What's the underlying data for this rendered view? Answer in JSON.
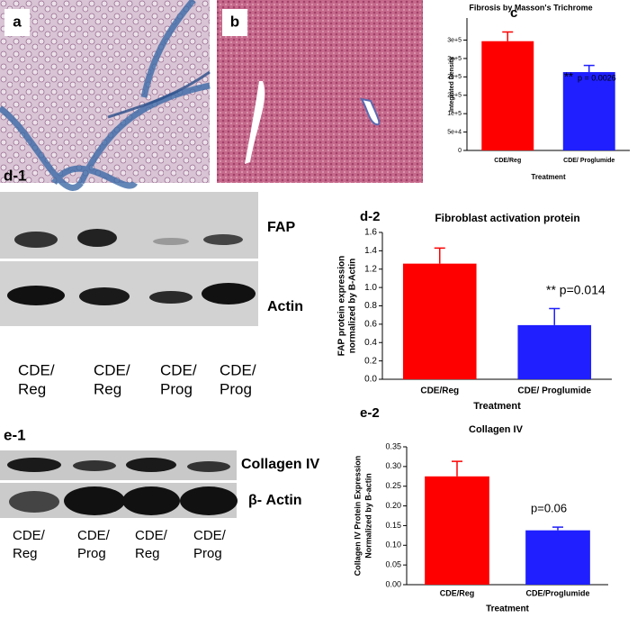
{
  "panel_a": {
    "label": "a"
  },
  "panel_b": {
    "label": "b"
  },
  "blot_d1": {
    "label": "d-1",
    "bands": [
      "FAP",
      "Actin"
    ],
    "lanes": [
      [
        "CDE/",
        "Reg"
      ],
      [
        "CDE/",
        "Reg"
      ],
      [
        "CDE/",
        "Prog"
      ],
      [
        "CDE/",
        "Prog"
      ]
    ]
  },
  "blot_e1": {
    "label": "e-1",
    "bands": [
      "Collagen IV",
      "β- Actin"
    ],
    "lanes": [
      [
        "CDE/",
        "Reg"
      ],
      [
        "CDE/",
        "Prog"
      ],
      [
        "CDE/",
        "Reg"
      ],
      [
        "CDE/",
        "Prog"
      ]
    ]
  },
  "chart_data": [
    {
      "type": "bar",
      "panel": "c",
      "title": "Fibrosis by Masson's Trichrome",
      "ylabel": [
        "Integrated Density"
      ],
      "xlabel": "Treatment",
      "categories": [
        "CDE/Reg",
        "CDE/ Proglumide"
      ],
      "values": [
        297000,
        213000
      ],
      "errors": [
        25000,
        18000
      ],
      "colors": [
        "#ff0000",
        "#1f1fff"
      ],
      "ylim": [
        0,
        360000
      ],
      "yticks": [
        0,
        {
          "value": 50000,
          "label": "5e+4"
        },
        {
          "value": 100000,
          "label": "1e+5"
        },
        {
          "value": 150000,
          "label": "2e+5"
        },
        {
          "value": 200000,
          "label": "2e+5"
        },
        {
          "value": 250000,
          "label": "3e+5"
        },
        {
          "value": 300000,
          "label": "3e+5"
        }
      ],
      "annotations": [
        "**",
        "p = 0.0026"
      ]
    },
    {
      "type": "bar",
      "panel": "d-2",
      "title": "Fibroblast activation protein",
      "ylabel": [
        "FAP protein expression",
        "normalized by B-Actin"
      ],
      "xlabel": "Treatment",
      "categories": [
        "CDE/Reg",
        "CDE/ Proglumide"
      ],
      "values": [
        1.26,
        0.59
      ],
      "errors": [
        0.17,
        0.18
      ],
      "colors": [
        "#ff0000",
        "#1f1fff"
      ],
      "ylim": [
        0,
        1.6
      ],
      "yticks": [
        {
          "value": 0,
          "label": "0.0"
        },
        0.2,
        0.4,
        0.6,
        0.8,
        {
          "value": 1,
          "label": "1.0"
        },
        1.2,
        1.4,
        1.6
      ],
      "annotations": [
        "** p=0.014"
      ]
    },
    {
      "type": "bar",
      "panel": "e-2",
      "title": "Collagen IV",
      "ylabel": [
        "Collagen IV Protein Expression",
        "Normalized by B-actin"
      ],
      "xlabel": "Treatment",
      "categories": [
        "CDE/Reg",
        "CDE/Proglumide"
      ],
      "values": [
        0.275,
        0.138
      ],
      "errors": [
        0.038,
        0.008
      ],
      "colors": [
        "#ff0000",
        "#1f1fff"
      ],
      "ylim": [
        0,
        0.35
      ],
      "yticks": [
        {
          "value": 0,
          "label": "0.00"
        },
        0.05,
        {
          "value": 0.1,
          "label": "0.10"
        },
        0.15,
        {
          "value": 0.2,
          "label": "0.20"
        },
        0.25,
        {
          "value": 0.3,
          "label": "0.30"
        },
        0.35
      ],
      "annotations": [
        "p=0.06"
      ]
    }
  ]
}
